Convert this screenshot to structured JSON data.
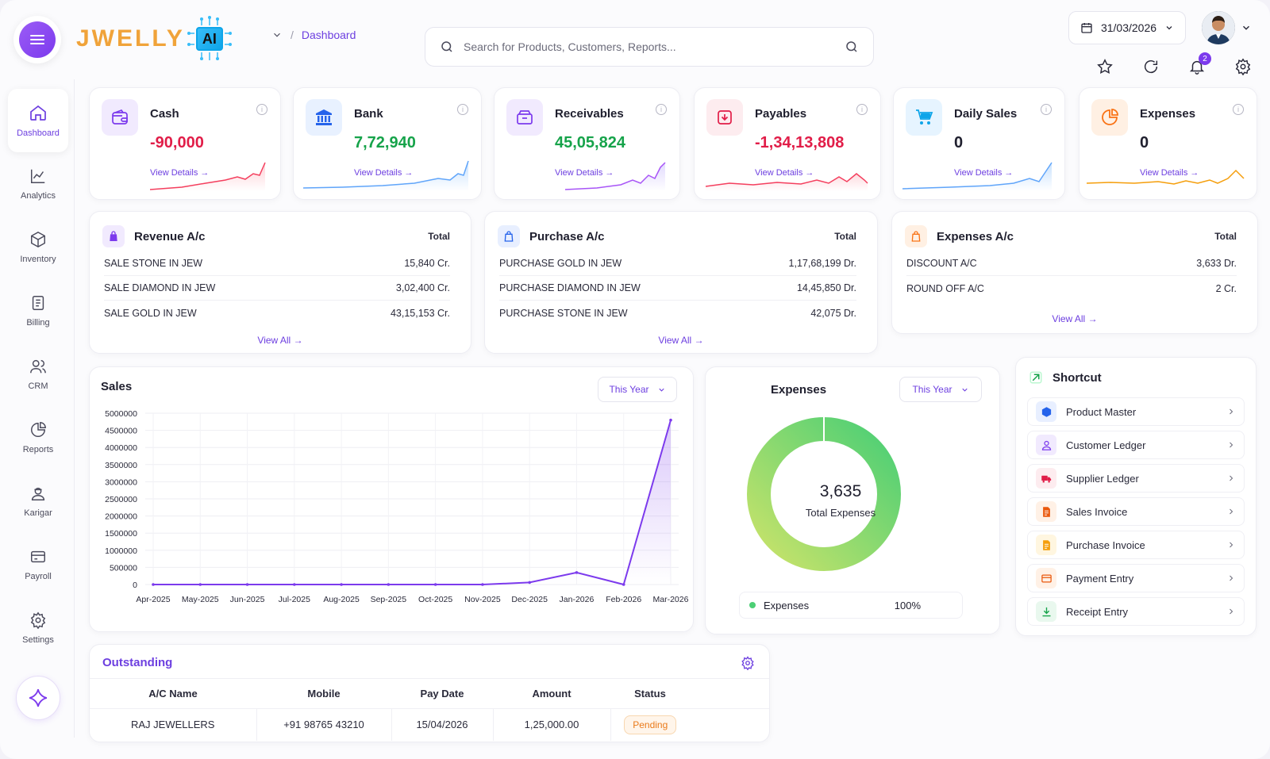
{
  "app": {
    "logo_text": "JWELLY",
    "logo_ai": "AI"
  },
  "breadcrumb": {
    "current": "Dashboard",
    "separator": "/"
  },
  "search": {
    "placeholder": "Search for Products, Customers, Reports..."
  },
  "header": {
    "date": "31/03/2026",
    "notification_count": "2"
  },
  "sidebar": {
    "items": [
      {
        "label": "Dashboard",
        "icon": "home-icon"
      },
      {
        "label": "Analytics",
        "icon": "chart-line-icon"
      },
      {
        "label": "Inventory",
        "icon": "box-icon"
      },
      {
        "label": "Billing",
        "icon": "document-icon"
      },
      {
        "label": "CRM",
        "icon": "users-icon"
      },
      {
        "label": "Reports",
        "icon": "pie-icon"
      },
      {
        "label": "Karigar",
        "icon": "worker-icon"
      },
      {
        "label": "Payroll",
        "icon": "card-icon"
      },
      {
        "label": "Settings",
        "icon": "gear-icon"
      }
    ]
  },
  "kpis": [
    {
      "title": "Cash",
      "value": "-90,000",
      "link": "View Details",
      "color": "#e11d48",
      "icon": "wallet-icon"
    },
    {
      "title": "Bank",
      "value": "7,72,940",
      "link": "View Details",
      "color": "#16a34a",
      "icon": "bank-icon"
    },
    {
      "title": "Receivables",
      "value": "45,05,824",
      "link": "View Details",
      "color": "#16a34a",
      "icon": "box-in-icon"
    },
    {
      "title": "Payables",
      "value": "-1,34,13,808",
      "link": "View Details",
      "color": "#e11d48",
      "icon": "download-icon"
    },
    {
      "title": "Daily Sales",
      "value": "0",
      "link": "View Details",
      "color": "#1f1f2e",
      "icon": "cart-icon"
    },
    {
      "title": "Expenses",
      "value": "0",
      "link": "View Details",
      "color": "#1f1f2e",
      "icon": "pie-icon"
    }
  ],
  "revenue": {
    "title": "Revenue A/c",
    "total_label": "Total",
    "view_all": "View All",
    "rows": [
      {
        "name": "SALE STONE IN JEW",
        "amount": "15,840 Cr."
      },
      {
        "name": "SALE DIAMOND IN JEW",
        "amount": "3,02,400 Cr."
      },
      {
        "name": "SALE GOLD IN JEW",
        "amount": "43,15,153 Cr."
      }
    ]
  },
  "purchase": {
    "title": "Purchase A/c",
    "total_label": "Total",
    "view_all": "View All",
    "rows": [
      {
        "name": "PURCHASE GOLD IN JEW",
        "amount": "1,17,68,199 Dr."
      },
      {
        "name": "PURCHASE DIAMOND IN JEW",
        "amount": "14,45,850 Dr."
      },
      {
        "name": "PURCHASE STONE IN JEW",
        "amount": "42,075 Dr."
      }
    ]
  },
  "expenses_ac": {
    "title": "Expenses A/c",
    "total_label": "Total",
    "view_all": "View All",
    "rows": [
      {
        "name": "DISCOUNT A/C",
        "amount": "3,633 Dr."
      },
      {
        "name": "ROUND OFF A/C",
        "amount": "2 Cr."
      }
    ]
  },
  "sales": {
    "title": "Sales",
    "period": "This Year"
  },
  "expenses_chart": {
    "title": "Expenses",
    "period": "This Year",
    "center_value": "3,635",
    "center_label": "Total Expenses",
    "legend_label": "Expenses",
    "legend_pct": "100%"
  },
  "shortcut": {
    "title": "Shortcut",
    "items": [
      {
        "label": "Product Master",
        "icon": "cube-icon",
        "color": "#2563eb",
        "bg": "#e8efff"
      },
      {
        "label": "Customer Ledger",
        "icon": "user-icon",
        "color": "#7c3aed",
        "bg": "#f1eafe"
      },
      {
        "label": "Supplier Ledger",
        "icon": "truck-icon",
        "color": "#e11d48",
        "bg": "#fdecef"
      },
      {
        "label": "Sales Invoice",
        "icon": "invoice-icon",
        "color": "#ea580c",
        "bg": "#fff1e6"
      },
      {
        "label": "Purchase Invoice",
        "icon": "invoice-icon",
        "color": "#f59e0b",
        "bg": "#fff6e0"
      },
      {
        "label": "Payment Entry",
        "icon": "card-icon",
        "color": "#ea580c",
        "bg": "#fff1e6"
      },
      {
        "label": "Receipt Entry",
        "icon": "download-icon",
        "color": "#16a34a",
        "bg": "#e9f8ee"
      }
    ]
  },
  "outstanding": {
    "title": "Outstanding",
    "columns": [
      "A/C Name",
      "Mobile",
      "Pay Date",
      "Amount",
      "Status"
    ],
    "rows": [
      {
        "name": "RAJ JEWELLERS",
        "mobile": "+91 98765 43210",
        "pay_date": "15/04/2026",
        "amount": "1,25,000.00",
        "status": "Pending"
      }
    ]
  },
  "chart_data": [
    {
      "type": "line",
      "title": "Sales",
      "categories": [
        "Apr-2025",
        "May-2025",
        "Jun-2025",
        "Jul-2025",
        "Aug-2025",
        "Sep-2025",
        "Oct-2025",
        "Nov-2025",
        "Dec-2025",
        "Jan-2026",
        "Feb-2026",
        "Mar-2026"
      ],
      "series": [
        {
          "values": [
            0,
            0,
            0,
            0,
            0,
            0,
            0,
            0,
            60000,
            350000,
            0,
            4800000
          ]
        }
      ],
      "yticks": [
        0,
        500000,
        1000000,
        1500000,
        2000000,
        2500000,
        3000000,
        3500000,
        4000000,
        4500000,
        5000000
      ],
      "ylim": [
        0,
        5000000
      ],
      "grid": true,
      "colors": {
        "line": "#7c3aed",
        "fill": "#ede4fd"
      }
    },
    {
      "type": "pie",
      "title": "Expenses",
      "labels": [
        "Expenses"
      ],
      "values": [
        100
      ],
      "colors": {
        "start": "#c9e36a",
        "end": "#4ccf75"
      }
    }
  ]
}
